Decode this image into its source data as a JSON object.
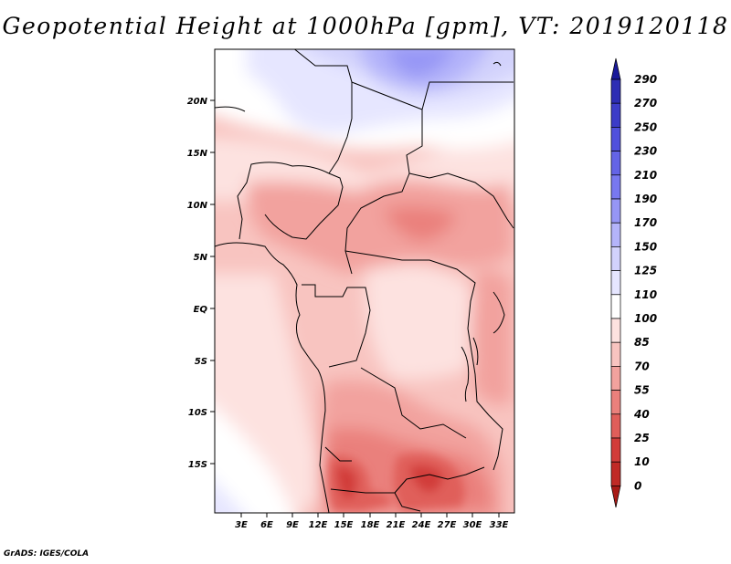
{
  "title": "Geopotential Height at 1000hPa [gpm], VT: 2019120118",
  "credit": "GrADS: IGES/COLA",
  "axes": {
    "lat_labels": [
      "20N",
      "15N",
      "10N",
      "5N",
      "EQ",
      "5S",
      "10S",
      "15S"
    ],
    "lon_labels": [
      "3E",
      "6E",
      "9E",
      "12E",
      "15E",
      "18E",
      "21E",
      "24E",
      "27E",
      "30E",
      "33E"
    ]
  },
  "colorbar": {
    "levels": [
      "290",
      "270",
      "250",
      "230",
      "210",
      "190",
      "170",
      "150",
      "125",
      "110",
      "100",
      "85",
      "70",
      "55",
      "40",
      "25",
      "10",
      "0"
    ],
    "colors": [
      "#1a1a9a",
      "#2d2db4",
      "#3c3cc8",
      "#5050dc",
      "#6464e6",
      "#7878f0",
      "#9696f5",
      "#b4b4fa",
      "#d2d2fc",
      "#e6e6ff",
      "#ffffff",
      "#fde2e0",
      "#f8c4c0",
      "#f2a29e",
      "#ea807c",
      "#e05e5a",
      "#d23c3a",
      "#c02a26",
      "#a81a16"
    ]
  }
}
